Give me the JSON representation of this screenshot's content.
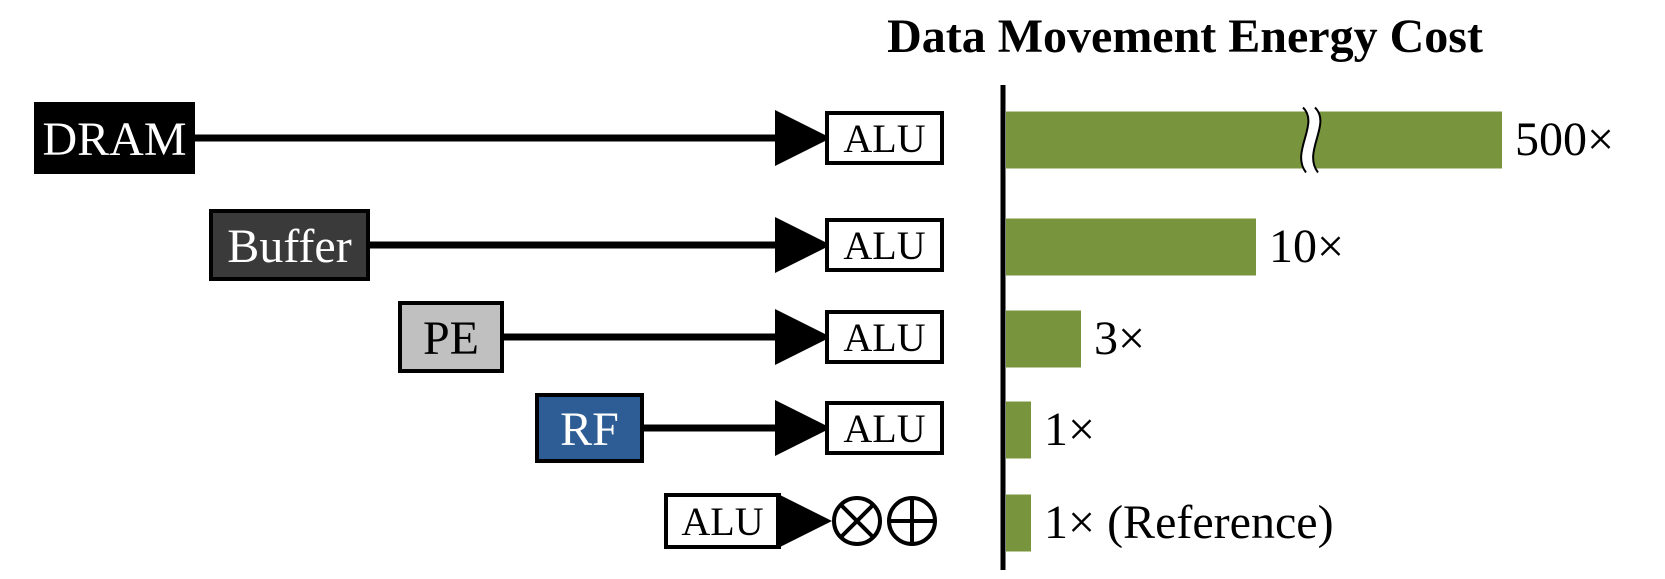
{
  "chart_data": {
    "type": "bar",
    "title": "Data Movement Energy Cost",
    "orientation": "horizontal",
    "axis_break_on_first_bar": true,
    "rows": [
      {
        "source": "DRAM",
        "source_fill": "#000000",
        "source_text": "#ffffff",
        "target": "ALU",
        "value": 500,
        "label": "500×"
      },
      {
        "source": "Buffer",
        "source_fill": "#3a3a3a",
        "source_text": "#ffffff",
        "target": "ALU",
        "value": 10,
        "label": "10×"
      },
      {
        "source": "PE",
        "source_fill": "#c0c0c0",
        "source_text": "#000000",
        "target": "ALU",
        "value": 3,
        "label": "3×"
      },
      {
        "source": "RF",
        "source_fill": "#2e5d95",
        "source_text": "#ffffff",
        "target": "ALU",
        "value": 1,
        "label": "1×"
      },
      {
        "source": "ALU",
        "source_fill": "#ffffff",
        "source_text": "#000000",
        "target": "multiply-add",
        "value": 1,
        "label": "1× (Reference)"
      }
    ],
    "colors": {
      "bar": "#78953d",
      "axis": "#000000"
    }
  }
}
